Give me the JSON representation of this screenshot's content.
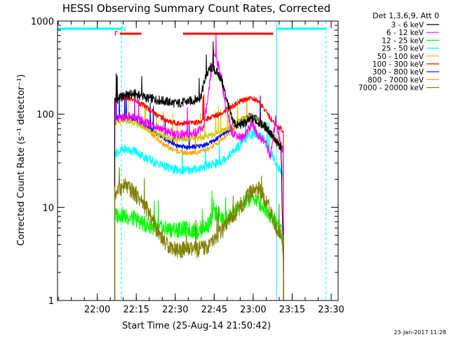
{
  "chart_data": {
    "type": "line",
    "title": "HESSI Observing Summary Count Rates, Corrected",
    "xlabel": "Start Time (25-Aug-14 21:50:42)",
    "ylabel": "Corrected Count Rate (s⁻¹ detector⁻¹)",
    "yscale": "log",
    "ylim": [
      1,
      1000
    ],
    "xlim_minutes": [
      -6,
      102
    ],
    "x_ticks": [
      {
        "label": "22:00",
        "minutes": 9.3
      },
      {
        "label": "22:15",
        "minutes": 24.3
      },
      {
        "label": "22:30",
        "minutes": 39.3
      },
      {
        "label": "22:45",
        "minutes": 54.3
      },
      {
        "label": "23:00",
        "minutes": 69.3
      },
      {
        "label": "23:15",
        "minutes": 84.3
      },
      {
        "label": "23:30",
        "minutes": 99.3
      }
    ],
    "y_ticks": [
      {
        "label": "1",
        "value": 1
      },
      {
        "label": "10",
        "value": 10
      },
      {
        "label": "100",
        "value": 100
      },
      {
        "label": "1000",
        "value": 1000
      }
    ],
    "legend_title": "Det 1,3,6,9, Att 0",
    "legend_position": "right",
    "series": [
      {
        "name": "3 - 6 keV",
        "color": "#000000",
        "x": [
          16,
          18,
          20,
          24,
          28,
          34,
          40,
          46,
          49,
          51,
          53,
          55,
          57,
          59,
          61,
          63,
          66,
          69,
          72,
          75,
          78,
          80,
          81
        ],
        "y": [
          140,
          150,
          160,
          165,
          150,
          140,
          130,
          140,
          150,
          250,
          320,
          290,
          240,
          150,
          90,
          75,
          80,
          90,
          80,
          70,
          50,
          45,
          2
        ]
      },
      {
        "name": "6 - 12 keV",
        "color": "#ff00ff",
        "x": [
          16,
          18,
          20,
          24,
          28,
          32,
          36,
          40,
          44,
          48,
          50,
          52,
          54,
          55,
          57,
          59,
          61,
          65,
          69,
          71,
          74,
          76,
          78,
          80,
          81
        ],
        "y": [
          85,
          90,
          95,
          90,
          80,
          75,
          65,
          60,
          60,
          65,
          70,
          150,
          450,
          420,
          250,
          110,
          65,
          55,
          80,
          60,
          50,
          35,
          90,
          45,
          40
        ]
      },
      {
        "name": "12 - 25 keV",
        "color": "#00ff00",
        "x": [
          16,
          18,
          20,
          24,
          28,
          32,
          36,
          40,
          44,
          48,
          52,
          55,
          58,
          62,
          66,
          69,
          72,
          75,
          78,
          80,
          81
        ],
        "y": [
          8,
          8.5,
          8,
          7.5,
          6.5,
          6,
          5.8,
          5.8,
          5.8,
          5.5,
          6.5,
          9,
          7,
          9,
          11,
          13,
          11,
          9,
          7,
          6,
          3
        ]
      },
      {
        "name": "25 - 50 keV",
        "color": "#00ffff",
        "x": [
          16,
          18,
          20,
          24,
          28,
          32,
          36,
          40,
          44,
          48,
          52,
          56,
          60,
          64,
          68,
          70,
          72,
          74,
          76,
          78,
          80,
          81
        ],
        "y": [
          38,
          40,
          42,
          40,
          34,
          30,
          27,
          25,
          25,
          26,
          28,
          30,
          36,
          46,
          60,
          62,
          60,
          50,
          40,
          30,
          24,
          22
        ]
      },
      {
        "name": "50 - 100 keV",
        "color": "#cccc00",
        "x": [
          16,
          18,
          20,
          24,
          28,
          32,
          36,
          40,
          44,
          48,
          52,
          56,
          60,
          64,
          68,
          70,
          72,
          74,
          76,
          78,
          80,
          81
        ],
        "y": [
          80,
          82,
          85,
          80,
          70,
          62,
          56,
          54,
          54,
          55,
          58,
          64,
          72,
          85,
          95,
          92,
          85,
          75,
          65,
          55,
          48,
          45
        ]
      },
      {
        "name": "100 - 300 keV",
        "color": "#ff0000",
        "x": [
          16,
          18,
          20,
          24,
          28,
          32,
          36,
          40,
          44,
          48,
          52,
          56,
          60,
          64,
          68,
          70,
          72,
          74,
          76,
          78,
          80,
          81
        ],
        "y": [
          140,
          145,
          150,
          140,
          120,
          100,
          85,
          80,
          80,
          82,
          90,
          100,
          115,
          135,
          150,
          145,
          130,
          110,
          90,
          75,
          70,
          65
        ]
      },
      {
        "name": "300 - 800 keV",
        "color": "#0000ff",
        "x": [
          16,
          18,
          20,
          24,
          28,
          32,
          36,
          40,
          44,
          48,
          52,
          56,
          60,
          64,
          68,
          70,
          72,
          74,
          76,
          78,
          80,
          81
        ],
        "y": [
          90,
          92,
          95,
          88,
          75,
          62,
          52,
          46,
          44,
          45,
          48,
          56,
          68,
          85,
          98,
          95,
          85,
          72,
          60,
          52,
          45,
          43
        ]
      },
      {
        "name": "800 - 7000 keV",
        "color": "#ffa500",
        "x": [
          16,
          18,
          20,
          24,
          28,
          32,
          36,
          40,
          44,
          48,
          52,
          56,
          60,
          64,
          68,
          70,
          72,
          74,
          76,
          78,
          80,
          81
        ],
        "y": [
          90,
          92,
          95,
          85,
          70,
          55,
          45,
          40,
          38,
          39,
          42,
          50,
          62,
          80,
          95,
          92,
          82,
          70,
          58,
          50,
          44,
          42
        ]
      },
      {
        "name": "7000 - 20000 keV",
        "color": "#808000",
        "x": [
          16,
          18,
          20,
          24,
          28,
          32,
          36,
          40,
          44,
          48,
          52,
          56,
          60,
          64,
          68,
          70,
          72,
          74,
          76,
          78,
          80,
          81
        ],
        "y": [
          14,
          16,
          17,
          14,
          10,
          6,
          4,
          3.5,
          3.5,
          3.5,
          3.8,
          5,
          7,
          10,
          14,
          16,
          15,
          12,
          9,
          6,
          5,
          4
        ]
      }
    ],
    "annotations": {
      "flag_letters": [
        {
          "text": "F",
          "color": "#ff0000",
          "x_minutes": 18
        },
        {
          "text": "N",
          "color": "#00ffff",
          "x_minutes": 20
        }
      ],
      "red_bars": [
        [
          18,
          26.3
        ],
        [
          42.3,
          77
        ]
      ],
      "cyan_bars": [
        [
          -6,
          18.6
        ],
        [
          78.3,
          97.3
        ]
      ],
      "cyan_solid_lines": [
        -6,
        78.3
      ],
      "cyan_dashed_lines": [
        18.6,
        97.3
      ]
    }
  },
  "footer": {
    "timestamp": "23-Jan-2017 11:28"
  }
}
